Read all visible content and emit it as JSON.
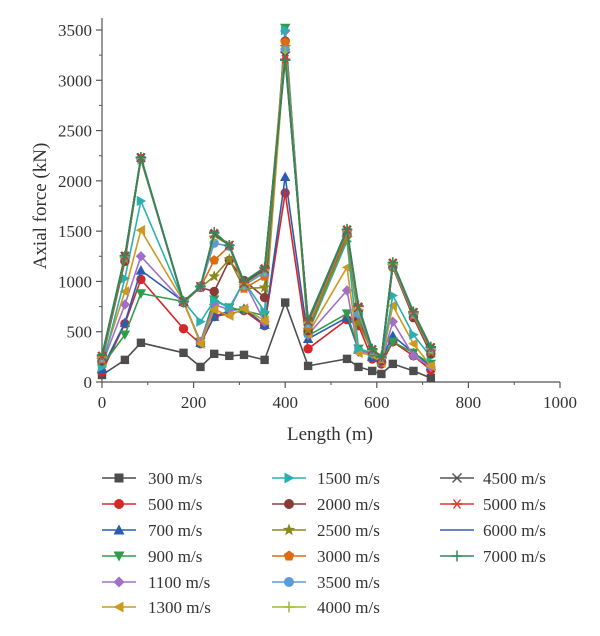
{
  "chart_data": {
    "type": "line",
    "xlabel": "Length (m)",
    "ylabel": "Axial force (kN)",
    "xlim": [
      0,
      1000
    ],
    "ylim": [
      0,
      3500
    ],
    "xticks": [
      0,
      200,
      400,
      600,
      800,
      1000
    ],
    "yticks": [
      0,
      500,
      1000,
      1500,
      2000,
      2500,
      3000,
      3500
    ],
    "x": [
      0,
      50,
      85,
      178,
      215,
      245,
      278,
      310,
      355,
      400,
      450,
      535,
      560,
      590,
      610,
      635,
      680,
      718
    ],
    "legend_position": "bottom",
    "series": [
      {
        "name": "300 m/s",
        "color": "#4d4d4d",
        "marker": "square",
        "values": [
          70,
          220,
          390,
          290,
          150,
          280,
          260,
          270,
          220,
          790,
          160,
          230,
          150,
          110,
          80,
          180,
          110,
          40
        ]
      },
      {
        "name": "500 m/s",
        "color": "#d62728",
        "marker": "circle",
        "values": [
          100,
          580,
          1020,
          530,
          380,
          650,
          680,
          710,
          560,
          1880,
          330,
          620,
          560,
          230,
          180,
          400,
          260,
          120
        ]
      },
      {
        "name": "700 m/s",
        "color": "#2a5db0",
        "marker": "triangle-up",
        "values": [
          130,
          590,
          1110,
          800,
          390,
          650,
          710,
          730,
          570,
          2040,
          430,
          640,
          320,
          250,
          230,
          460,
          290,
          160
        ]
      },
      {
        "name": "900 m/s",
        "color": "#2e9c4a",
        "marker": "triangle-down",
        "values": [
          160,
          470,
          880,
          800,
          400,
          820,
          740,
          710,
          660,
          3520,
          460,
          680,
          330,
          270,
          230,
          400,
          290,
          180
        ]
      },
      {
        "name": "1100 m/s",
        "color": "#a070c8",
        "marker": "diamond",
        "values": [
          170,
          770,
          1250,
          790,
          400,
          770,
          720,
          1000,
          600,
          3490,
          470,
          910,
          300,
          280,
          200,
          600,
          260,
          150
        ]
      },
      {
        "name": "1300 m/s",
        "color": "#cc9a1e",
        "marker": "triangle-left",
        "values": [
          190,
          900,
          1510,
          800,
          380,
          720,
          660,
          730,
          610,
          3320,
          480,
          1140,
          290,
          270,
          190,
          760,
          380,
          160
        ]
      },
      {
        "name": "1500 m/s",
        "color": "#2ab0b0",
        "marker": "triangle-right",
        "values": [
          150,
          1030,
          1800,
          800,
          600,
          810,
          740,
          1000,
          700,
          3500,
          490,
          1400,
          330,
          290,
          200,
          860,
          470,
          250
        ]
      },
      {
        "name": "2000 m/s",
        "color": "#8b3a3a",
        "marker": "circle",
        "values": [
          210,
          1200,
          2220,
          790,
          940,
          900,
          1210,
          1010,
          840,
          3390,
          510,
          1460,
          620,
          300,
          210,
          1140,
          640,
          280
        ]
      },
      {
        "name": "2500 m/s",
        "color": "#8a8a1a",
        "marker": "star",
        "values": [
          220,
          1220,
          2210,
          800,
          940,
          1050,
          1220,
          930,
          940,
          3330,
          520,
          1430,
          590,
          300,
          220,
          1150,
          660,
          300
        ]
      },
      {
        "name": "3000 m/s",
        "color": "#e06a10",
        "marker": "pentagon",
        "values": [
          230,
          1240,
          2220,
          800,
          940,
          1210,
          1350,
          930,
          1050,
          3380,
          560,
          1480,
          700,
          310,
          230,
          1150,
          670,
          320
        ]
      },
      {
        "name": "3500 m/s",
        "color": "#5a9bd8",
        "marker": "circle",
        "values": [
          240,
          1250,
          2220,
          800,
          950,
          1380,
          1350,
          960,
          1090,
          3300,
          580,
          1500,
          680,
          310,
          240,
          1160,
          680,
          330
        ]
      },
      {
        "name": "4000 m/s",
        "color": "#9bbb3a",
        "marker": "plus",
        "values": [
          250,
          1250,
          2230,
          800,
          950,
          1450,
          1360,
          970,
          1110,
          3280,
          590,
          1510,
          720,
          320,
          240,
          1170,
          690,
          340
        ]
      },
      {
        "name": "4500 m/s",
        "color": "#555555",
        "marker": "x",
        "values": [
          255,
          1250,
          2230,
          800,
          950,
          1470,
          1360,
          980,
          1120,
          3240,
          600,
          1510,
          740,
          320,
          245,
          1180,
          690,
          340
        ]
      },
      {
        "name": "5000 m/s",
        "color": "#e0382a",
        "marker": "asterisk",
        "values": [
          260,
          1255,
          2235,
          800,
          950,
          1480,
          1360,
          990,
          1130,
          3210,
          610,
          1515,
          750,
          325,
          245,
          1185,
          695,
          345
        ]
      },
      {
        "name": "6000 m/s",
        "color": "#3a5aa8",
        "marker": "none",
        "values": [
          265,
          1255,
          2235,
          800,
          950,
          1485,
          1360,
          995,
          1135,
          3200,
          615,
          1515,
          755,
          330,
          248,
          1188,
          698,
          348
        ]
      },
      {
        "name": "7000 m/s",
        "color": "#2e8b57",
        "marker": "cross",
        "values": [
          270,
          1255,
          2235,
          800,
          950,
          1490,
          1360,
          1000,
          1140,
          3200,
          620,
          1520,
          760,
          330,
          250,
          1190,
          700,
          350
        ]
      }
    ]
  }
}
